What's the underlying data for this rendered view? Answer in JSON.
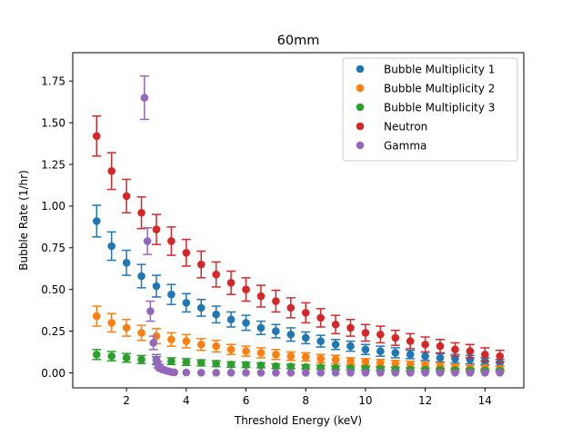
{
  "chart_data": {
    "type": "scatter",
    "title": "60mm",
    "xlabel": "Threshold Energy (keV)",
    "ylabel": "Bubble Rate (1/hr)",
    "xlim": [
      0.2,
      15.3
    ],
    "ylim": [
      -0.09,
      1.92
    ],
    "xticks": [
      2,
      4,
      6,
      8,
      10,
      12,
      14
    ],
    "yticks": [
      0.0,
      0.25,
      0.5,
      0.75,
      1.0,
      1.25,
      1.5,
      1.75
    ],
    "grid": false,
    "legend_position": "top-right",
    "series": [
      {
        "name": "Bubble Multiplicity 1",
        "color": "#1f77b4",
        "x": [
          1,
          1.5,
          2,
          2.5,
          3,
          3.5,
          4,
          4.5,
          5,
          5.5,
          6,
          6.5,
          7,
          7.5,
          8,
          8.5,
          9,
          9.5,
          10,
          10.5,
          11,
          11.5,
          12,
          12.5,
          13,
          13.5,
          14,
          14.5
        ],
        "y": [
          0.91,
          0.76,
          0.66,
          0.58,
          0.52,
          0.47,
          0.42,
          0.39,
          0.35,
          0.32,
          0.3,
          0.27,
          0.25,
          0.23,
          0.21,
          0.19,
          0.17,
          0.16,
          0.14,
          0.13,
          0.12,
          0.11,
          0.1,
          0.09,
          0.085,
          0.08,
          0.07,
          0.06
        ],
        "err": [
          0.095,
          0.085,
          0.075,
          0.07,
          0.065,
          0.06,
          0.055,
          0.05,
          0.05,
          0.045,
          0.045,
          0.04,
          0.04,
          0.04,
          0.035,
          0.035,
          0.03,
          0.03,
          0.03,
          0.03,
          0.03,
          0.025,
          0.025,
          0.025,
          0.025,
          0.025,
          0.02,
          0.02
        ]
      },
      {
        "name": "Bubble Multiplicity 2",
        "color": "#ff7f0e",
        "x": [
          1,
          1.5,
          2,
          2.5,
          3,
          3.5,
          4,
          4.5,
          5,
          5.5,
          6,
          6.5,
          7,
          7.5,
          8,
          8.5,
          9,
          9.5,
          10,
          10.5,
          11,
          11.5,
          12,
          12.5,
          13,
          13.5,
          14,
          14.5
        ],
        "y": [
          0.34,
          0.3,
          0.27,
          0.24,
          0.22,
          0.2,
          0.19,
          0.17,
          0.16,
          0.14,
          0.13,
          0.12,
          0.11,
          0.1,
          0.095,
          0.085,
          0.08,
          0.07,
          0.065,
          0.06,
          0.055,
          0.05,
          0.045,
          0.04,
          0.035,
          0.03,
          0.03,
          0.025
        ],
        "err": [
          0.06,
          0.055,
          0.05,
          0.045,
          0.045,
          0.04,
          0.04,
          0.035,
          0.035,
          0.03,
          0.03,
          0.03,
          0.03,
          0.025,
          0.025,
          0.025,
          0.025,
          0.02,
          0.02,
          0.02,
          0.02,
          0.02,
          0.02,
          0.02,
          0.015,
          0.015,
          0.015,
          0.015
        ]
      },
      {
        "name": "Bubble Multiplicity 3",
        "color": "#2ca02c",
        "x": [
          1,
          1.5,
          2,
          2.5,
          3,
          3.5,
          4,
          4.5,
          5,
          5.5,
          6,
          6.5,
          7,
          7.5,
          8,
          8.5,
          9,
          9.5,
          10,
          10.5,
          11,
          11.5,
          12,
          12.5,
          13,
          13.5,
          14,
          14.5
        ],
        "y": [
          0.11,
          0.1,
          0.09,
          0.08,
          0.075,
          0.07,
          0.065,
          0.06,
          0.055,
          0.05,
          0.048,
          0.045,
          0.04,
          0.038,
          0.035,
          0.033,
          0.03,
          0.028,
          0.026,
          0.024,
          0.022,
          0.02,
          0.019,
          0.018,
          0.016,
          0.015,
          0.014,
          0.013
        ],
        "err": [
          0.03,
          0.028,
          0.026,
          0.024,
          0.022,
          0.02,
          0.02,
          0.018,
          0.018,
          0.016,
          0.016,
          0.015,
          0.014,
          0.013,
          0.013,
          0.012,
          0.012,
          0.011,
          0.011,
          0.01,
          0.01,
          0.01,
          0.01,
          0.009,
          0.009,
          0.009,
          0.008,
          0.008
        ]
      },
      {
        "name": "Neutron",
        "color": "#d62728",
        "x": [
          1,
          1.5,
          2,
          2.5,
          3,
          3.5,
          4,
          4.5,
          5,
          5.5,
          6,
          6.5,
          7,
          7.5,
          8,
          8.5,
          9,
          9.5,
          10,
          10.5,
          11,
          11.5,
          12,
          12.5,
          13,
          13.5,
          14,
          14.5
        ],
        "y": [
          1.42,
          1.21,
          1.06,
          0.96,
          0.86,
          0.79,
          0.72,
          0.65,
          0.59,
          0.54,
          0.5,
          0.46,
          0.43,
          0.39,
          0.36,
          0.33,
          0.29,
          0.27,
          0.24,
          0.23,
          0.21,
          0.19,
          0.17,
          0.16,
          0.14,
          0.13,
          0.11,
          0.1
        ],
        "err": [
          0.12,
          0.11,
          0.1,
          0.095,
          0.09,
          0.085,
          0.08,
          0.08,
          0.075,
          0.07,
          0.07,
          0.065,
          0.065,
          0.06,
          0.06,
          0.055,
          0.055,
          0.05,
          0.05,
          0.05,
          0.045,
          0.045,
          0.045,
          0.04,
          0.04,
          0.04,
          0.04,
          0.035
        ]
      },
      {
        "name": "Gamma",
        "color": "#9467bd",
        "x": [
          2.6,
          2.7,
          2.8,
          2.9,
          3.0,
          3.05,
          3.1,
          3.15,
          3.2,
          3.3,
          3.4,
          3.5,
          3.6,
          4.0,
          4.5,
          5.0,
          5.5,
          6.0,
          6.5,
          7.0,
          7.5,
          8.0,
          8.5,
          9.0,
          9.5,
          10.0,
          10.5,
          11.0,
          11.5,
          12.0,
          12.5,
          13.0,
          13.5,
          14.0,
          14.5
        ],
        "y": [
          1.65,
          0.79,
          0.37,
          0.18,
          0.08,
          0.05,
          0.035,
          0.025,
          0.02,
          0.015,
          0.01,
          0.005,
          0.003,
          0.002,
          0.001,
          0.001,
          0.001,
          0.0005,
          0.0005,
          0.0005,
          0.0005,
          0.0005,
          0.0005,
          0.0005,
          0.0005,
          0.0005,
          0.0005,
          0.0005,
          0.0005,
          0.0005,
          0.0005,
          0.0005,
          0.0005,
          0.0005,
          0.0005
        ],
        "err": [
          0.13,
          0.08,
          0.06,
          0.04,
          0.03,
          0.02,
          0.015,
          0.012,
          0.01,
          0.008,
          0.006,
          0.004,
          0.003,
          0.002,
          0.001,
          0.001,
          0.001,
          0.001,
          0.001,
          0.001,
          0.001,
          0.001,
          0.001,
          0.001,
          0.001,
          0.001,
          0.001,
          0.001,
          0.001,
          0.001,
          0.001,
          0.001,
          0.001,
          0.001,
          0.001
        ]
      }
    ]
  }
}
